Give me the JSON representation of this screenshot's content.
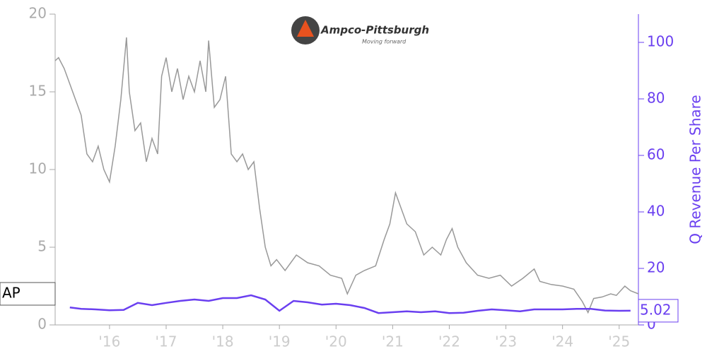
{
  "chart_data": {
    "type": "line",
    "logo_text": "Ampco-Pittsburgh",
    "logo_tagline": "Moving forward",
    "y2label": "Q Revenue Per Share",
    "ticker": "AP",
    "last_value_label": "5.02",
    "xlim": [
      2015.04,
      2025.34
    ],
    "xticks": [
      {
        "value": 2016,
        "label": "'16"
      },
      {
        "value": 2017,
        "label": "'17"
      },
      {
        "value": 2018,
        "label": "'18"
      },
      {
        "value": 2019,
        "label": "'19"
      },
      {
        "value": 2020,
        "label": "'20"
      },
      {
        "value": 2021,
        "label": "'21"
      },
      {
        "value": 2022,
        "label": "'22"
      },
      {
        "value": 2023,
        "label": "'23"
      },
      {
        "value": 2024,
        "label": "'24"
      },
      {
        "value": 2025,
        "label": "'25"
      }
    ],
    "ylim": [
      0,
      20
    ],
    "yticks": [
      0,
      5,
      10,
      15,
      20
    ],
    "y2lim": [
      0,
      110
    ],
    "y2ticks": [
      0,
      20,
      40,
      60,
      80,
      100
    ],
    "series": [
      {
        "color": "#999999",
        "x": [
          2015.04,
          2015.1,
          2015.2,
          2015.3,
          2015.4,
          2015.5,
          2015.6,
          2015.7,
          2015.8,
          2015.9,
          2016.0,
          2016.1,
          2016.2,
          2016.3,
          2016.35,
          2016.45,
          2016.55,
          2016.65,
          2016.75,
          2016.85,
          2016.92,
          2017.0,
          2017.1,
          2017.2,
          2017.3,
          2017.4,
          2017.5,
          2017.6,
          2017.7,
          2017.75,
          2017.85,
          2017.95,
          2018.05,
          2018.15,
          2018.25,
          2018.35,
          2018.45,
          2018.55,
          2018.65,
          2018.75,
          2018.85,
          2018.95,
          2019.1,
          2019.3,
          2019.5,
          2019.7,
          2019.9,
          2020.1,
          2020.2,
          2020.35,
          2020.5,
          2020.7,
          2020.85,
          2020.95,
          2021.05,
          2021.15,
          2021.25,
          2021.4,
          2021.55,
          2021.7,
          2021.85,
          2021.95,
          2022.05,
          2022.15,
          2022.3,
          2022.5,
          2022.7,
          2022.9,
          2023.1,
          2023.3,
          2023.5,
          2023.6,
          2023.8,
          2024.0,
          2024.2,
          2024.35,
          2024.45,
          2024.55,
          2024.7,
          2024.85,
          2024.95,
          2025.1,
          2025.2,
          2025.34
        ],
        "values": [
          17.0,
          17.2,
          16.5,
          15.5,
          14.5,
          13.5,
          11.0,
          10.5,
          11.5,
          10.0,
          9.2,
          11.5,
          14.5,
          18.5,
          15.0,
          12.5,
          13.0,
          10.5,
          12.0,
          11.0,
          16.0,
          17.2,
          15.0,
          16.5,
          14.5,
          16.0,
          15.0,
          17.0,
          15.0,
          18.3,
          14.0,
          14.5,
          16.0,
          11.0,
          10.5,
          11.0,
          10.0,
          10.5,
          7.5,
          5.0,
          3.8,
          4.2,
          3.5,
          4.5,
          4.0,
          3.8,
          3.2,
          3.0,
          2.0,
          3.2,
          3.5,
          3.8,
          5.5,
          6.5,
          8.5,
          7.5,
          6.5,
          6.0,
          4.5,
          5.0,
          4.5,
          5.5,
          6.2,
          5.0,
          4.0,
          3.2,
          3.0,
          3.2,
          2.5,
          3.0,
          3.6,
          2.8,
          2.6,
          2.5,
          2.3,
          1.5,
          0.8,
          1.7,
          1.8,
          2.0,
          1.9,
          2.5,
          2.2,
          2.0
        ]
      },
      {
        "color": "#6a3ff0",
        "axis": "y2",
        "x": [
          2015.3,
          2015.5,
          2015.75,
          2016.0,
          2016.25,
          2016.5,
          2016.75,
          2017.0,
          2017.25,
          2017.5,
          2017.75,
          2018.0,
          2018.25,
          2018.5,
          2018.75,
          2019.0,
          2019.25,
          2019.5,
          2019.75,
          2020.0,
          2020.25,
          2020.5,
          2020.75,
          2021.0,
          2021.25,
          2021.5,
          2021.75,
          2022.0,
          2022.25,
          2022.5,
          2022.75,
          2023.0,
          2023.25,
          2023.5,
          2023.75,
          2024.0,
          2024.25,
          2024.5,
          2024.75,
          2025.0,
          2025.2
        ],
        "values": [
          6.2,
          5.7,
          5.5,
          5.2,
          5.3,
          7.8,
          7.0,
          7.8,
          8.5,
          9.0,
          8.5,
          9.5,
          9.5,
          10.5,
          9.0,
          5.0,
          8.5,
          8.0,
          7.2,
          7.5,
          7.0,
          6.0,
          4.2,
          4.5,
          4.8,
          4.5,
          4.8,
          4.2,
          4.3,
          5.0,
          5.5,
          5.2,
          4.8,
          5.5,
          5.5,
          5.5,
          5.7,
          5.7,
          5.1,
          5.0,
          5.02
        ]
      }
    ]
  }
}
